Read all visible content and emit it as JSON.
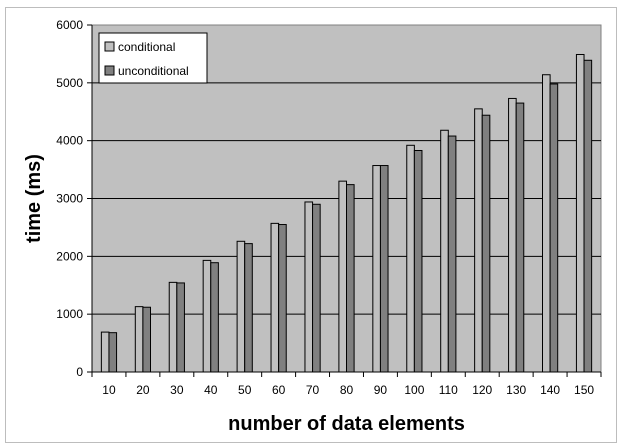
{
  "chart_data": {
    "type": "bar",
    "title": "",
    "xlabel": "number of data elements",
    "ylabel": "time (ms)",
    "categories": [
      "10",
      "20",
      "30",
      "40",
      "50",
      "60",
      "70",
      "80",
      "90",
      "100",
      "110",
      "120",
      "130",
      "140",
      "150"
    ],
    "series": [
      {
        "name": "conditional",
        "color": "#c0c0c0",
        "values": [
          690,
          1130,
          1550,
          1930,
          2260,
          2570,
          2940,
          3300,
          3570,
          3920,
          4180,
          4550,
          4730,
          5140,
          5490
        ]
      },
      {
        "name": "unconditional",
        "color": "#808080",
        "values": [
          680,
          1120,
          1540,
          1890,
          2220,
          2550,
          2900,
          3240,
          3570,
          3830,
          4080,
          4440,
          4650,
          4980,
          5390
        ]
      }
    ],
    "ylim": [
      0,
      6000
    ],
    "yticks": [
      "0",
      "1000",
      "2000",
      "3000",
      "4000",
      "5000",
      "6000"
    ],
    "grid": true,
    "plot_background": "#c0c0c0",
    "legend_position": "top-left"
  }
}
